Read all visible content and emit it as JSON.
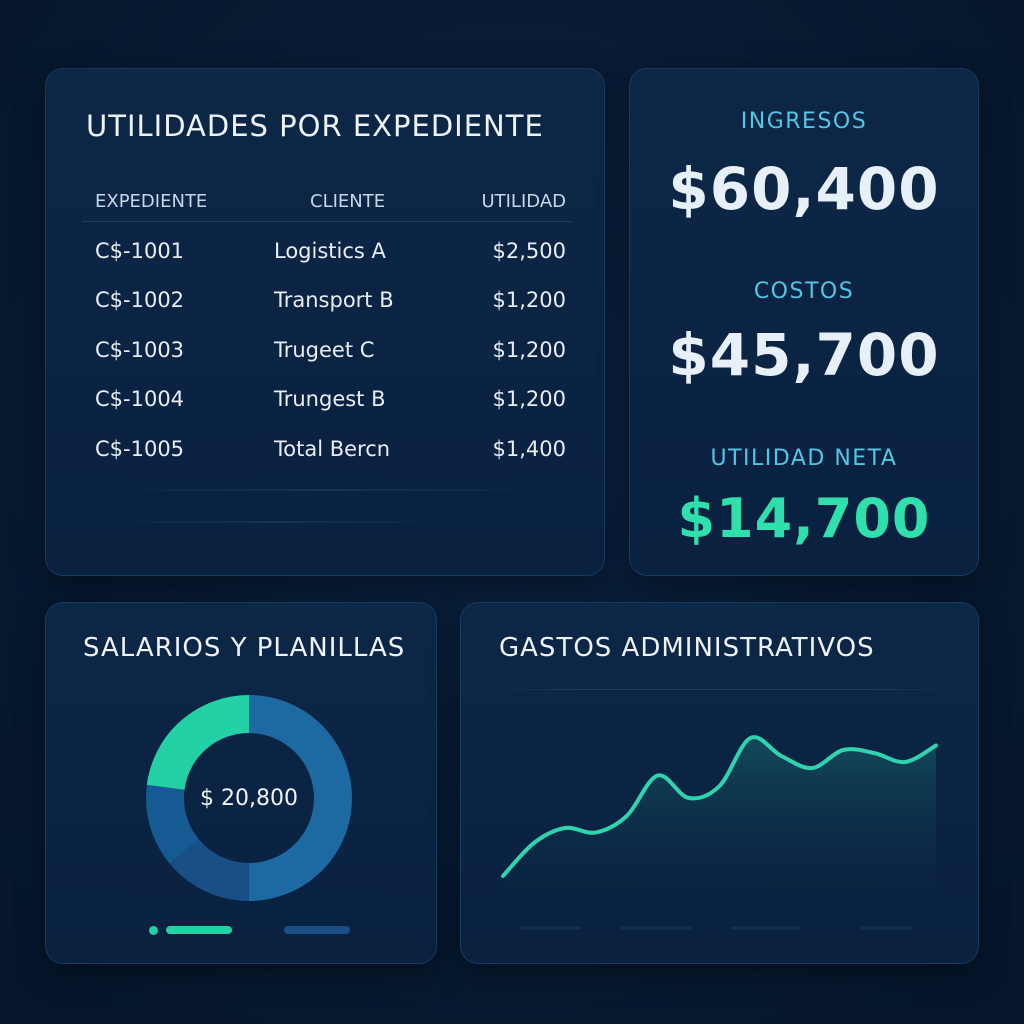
{
  "utilidades": {
    "title": "UTILIDADES POR EXPEDIENTE",
    "columns": [
      "EXPEDIENTE",
      "CLIENTE",
      "UTILIDAD"
    ],
    "rows": [
      {
        "expediente": "C$-1001",
        "cliente": "Logistics A",
        "utilidad": "$2,500"
      },
      {
        "expediente": "C$-1002",
        "cliente": "Transport B",
        "utilidad": "$1,200"
      },
      {
        "expediente": "C$-1003",
        "cliente": "Trugeet C",
        "utilidad": "$1,200"
      },
      {
        "expediente": "C$-1004",
        "cliente": "Trungest B",
        "utilidad": "$1,200"
      },
      {
        "expediente": "C$-1005",
        "cliente": "Total Bercn",
        "utilidad": "$1,400"
      }
    ]
  },
  "kpis": {
    "ingresos": {
      "label": "INGRESOS",
      "value": "$60,400"
    },
    "costos": {
      "label": "COSTOS",
      "value": "$45,700"
    },
    "utilidad_neta": {
      "label": "UTILIDAD NETA",
      "value": "$14,700"
    }
  },
  "salarios": {
    "title": "SALARIOS Y PLANILLAS",
    "center_label": "$ 20,800",
    "segments": [
      {
        "fraction": 0.5,
        "color": "#1d6aa3"
      },
      {
        "fraction": 0.14,
        "color": "#174f86"
      },
      {
        "fraction": 0.13,
        "color": "#165a93"
      },
      {
        "fraction": 0.23,
        "color": "#23d1a5"
      }
    ]
  },
  "gastos": {
    "title": "GASTOS ADMINISTRATIVOS",
    "chart_data": {
      "type": "area",
      "x": [
        0,
        1,
        2,
        3,
        4,
        5,
        6,
        7,
        8,
        9,
        10,
        11,
        12,
        13,
        14
      ],
      "values": [
        8,
        30,
        40,
        37,
        48,
        75,
        60,
        68,
        100,
        88,
        80,
        92,
        90,
        84,
        95
      ],
      "ylim": [
        0,
        110
      ],
      "grid": false,
      "color": "#2fd3ae"
    }
  }
}
